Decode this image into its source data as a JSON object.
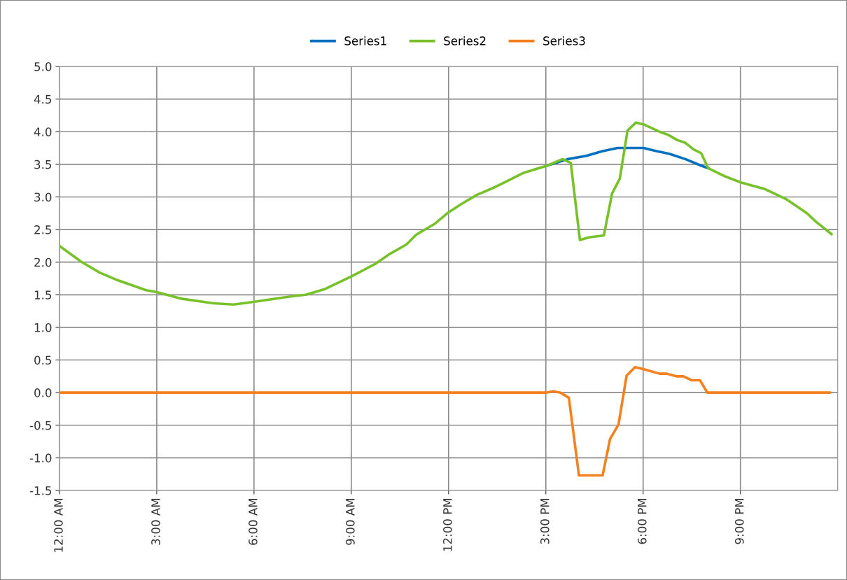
{
  "chart_data": {
    "type": "line",
    "xlim": [
      0,
      24
    ],
    "ylim": [
      -1.5,
      5.0
    ],
    "xticks": [
      {
        "value": 0,
        "label": "12:00 AM"
      },
      {
        "value": 3,
        "label": "3:00 AM"
      },
      {
        "value": 6,
        "label": "6:00 AM"
      },
      {
        "value": 9,
        "label": "9:00 AM"
      },
      {
        "value": 12,
        "label": "12:00 PM"
      },
      {
        "value": 15,
        "label": "3:00 PM"
      },
      {
        "value": 18,
        "label": "6:00 PM"
      },
      {
        "value": 21,
        "label": "9:00 PM"
      }
    ],
    "yticks": [
      {
        "value": -1.5,
        "label": "-1.5"
      },
      {
        "value": -1.0,
        "label": "-1.0"
      },
      {
        "value": -0.5,
        "label": "-0.5"
      },
      {
        "value": 0.0,
        "label": "0.0"
      },
      {
        "value": 0.5,
        "label": "0.5"
      },
      {
        "value": 1.0,
        "label": "1.0"
      },
      {
        "value": 1.5,
        "label": "1.5"
      },
      {
        "value": 2.0,
        "label": "2.0"
      },
      {
        "value": 2.5,
        "label": "2.5"
      },
      {
        "value": 3.0,
        "label": "3.0"
      },
      {
        "value": 3.5,
        "label": "3.5"
      },
      {
        "value": 4.0,
        "label": "4.0"
      },
      {
        "value": 4.5,
        "label": "4.5"
      },
      {
        "value": 5.0,
        "label": "5.0"
      }
    ],
    "grid": true,
    "legend": "top",
    "marker": "none",
    "line_style": "solid",
    "series": [
      {
        "name": "Series1",
        "color": "#0070c0",
        "x": [
          15.04,
          15.68,
          16.25,
          16.73,
          17.21,
          18.02,
          18.34,
          18.82,
          19.3,
          19.79,
          20.01
        ],
        "values": [
          3.48,
          3.58,
          3.63,
          3.7,
          3.75,
          3.75,
          3.71,
          3.66,
          3.58,
          3.48,
          3.44
        ]
      },
      {
        "name": "Series2",
        "color": "#77c22b",
        "x": [
          0,
          0.66,
          1.24,
          1.81,
          2.67,
          3,
          3.75,
          4.75,
          5.37,
          5.98,
          7.2,
          7.6,
          8.2,
          9,
          9.76,
          10.2,
          10.7,
          11,
          11.58,
          11.96,
          12.39,
          12.87,
          13.43,
          13.75,
          14.32,
          15.04,
          15.52,
          15.77,
          16.05,
          16.33,
          16.79,
          17.04,
          17.28,
          17.52,
          17.78,
          18.02,
          18.5,
          18.78,
          19.06,
          19.3,
          19.55,
          19.79,
          20.01,
          20.55,
          21.03,
          21.76,
          22.4,
          23.05,
          23.33,
          23.81
        ],
        "values": [
          2.25,
          2.01,
          1.84,
          1.72,
          1.57,
          1.54,
          1.44,
          1.37,
          1.35,
          1.39,
          1.48,
          1.5,
          1.59,
          1.78,
          1.98,
          2.13,
          2.27,
          2.42,
          2.59,
          2.75,
          2.89,
          3.03,
          3.15,
          3.23,
          3.37,
          3.48,
          3.58,
          3.52,
          2.34,
          2.38,
          2.41,
          3.05,
          3.28,
          4.02,
          4.14,
          4.11,
          4.0,
          3.95,
          3.87,
          3.83,
          3.73,
          3.67,
          3.44,
          3.31,
          3.22,
          3.12,
          2.97,
          2.75,
          2.62,
          2.43
        ]
      },
      {
        "name": "Series3",
        "color": "#f5801f",
        "x": [
          0,
          15,
          15.23,
          15.45,
          15.71,
          16.02,
          16.75,
          16.98,
          17.24,
          17.49,
          17.75,
          18.0,
          18.51,
          18.73,
          19.02,
          19.24,
          19.49,
          19.75,
          19.98,
          23.75
        ],
        "values": [
          0,
          0,
          0.02,
          0.0,
          -0.08,
          -1.27,
          -1.27,
          -0.71,
          -0.49,
          0.26,
          0.39,
          0.36,
          0.29,
          0.29,
          0.25,
          0.25,
          0.19,
          0.19,
          0.0,
          0.0
        ]
      }
    ]
  }
}
